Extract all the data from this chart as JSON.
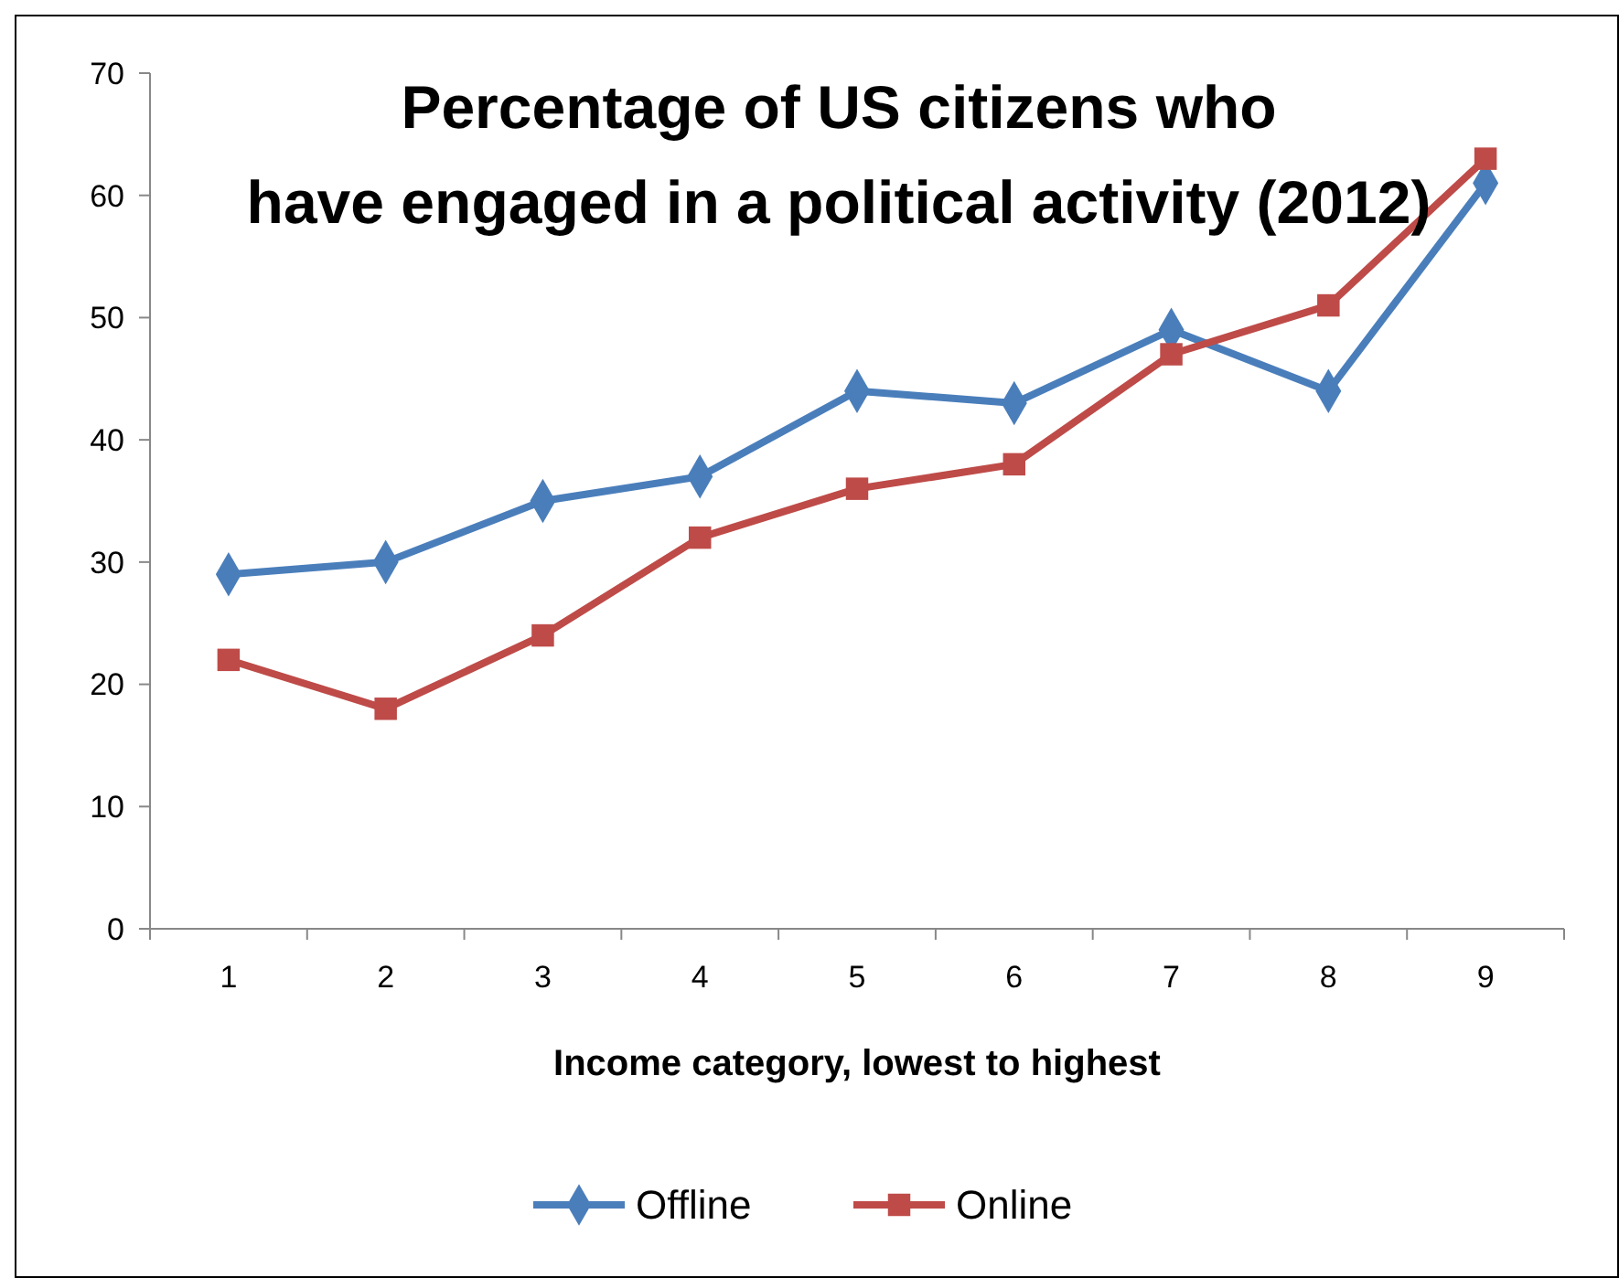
{
  "chart_data": {
    "type": "line",
    "title": "Percentage of US citizens who have engaged in a political activity (2012)",
    "xlabel": "Income category, lowest to highest",
    "categories": [
      "1",
      "2",
      "3",
      "4",
      "5",
      "6",
      "7",
      "8",
      "9"
    ],
    "series": [
      {
        "name": "Offline",
        "color": "#4a7ebb",
        "marker": "diamond",
        "values": [
          29,
          30,
          35,
          37,
          44,
          43,
          49,
          44,
          61
        ]
      },
      {
        "name": "Online",
        "color": "#be4b48",
        "marker": "square",
        "values": [
          22,
          18,
          24,
          32,
          36,
          38,
          47,
          51,
          63
        ]
      }
    ],
    "ylim": [
      0,
      70
    ],
    "yticks": [
      0,
      10,
      20,
      30,
      40,
      50,
      60,
      70
    ],
    "grid": false,
    "legend": "bottom",
    "line_style": "solid"
  }
}
